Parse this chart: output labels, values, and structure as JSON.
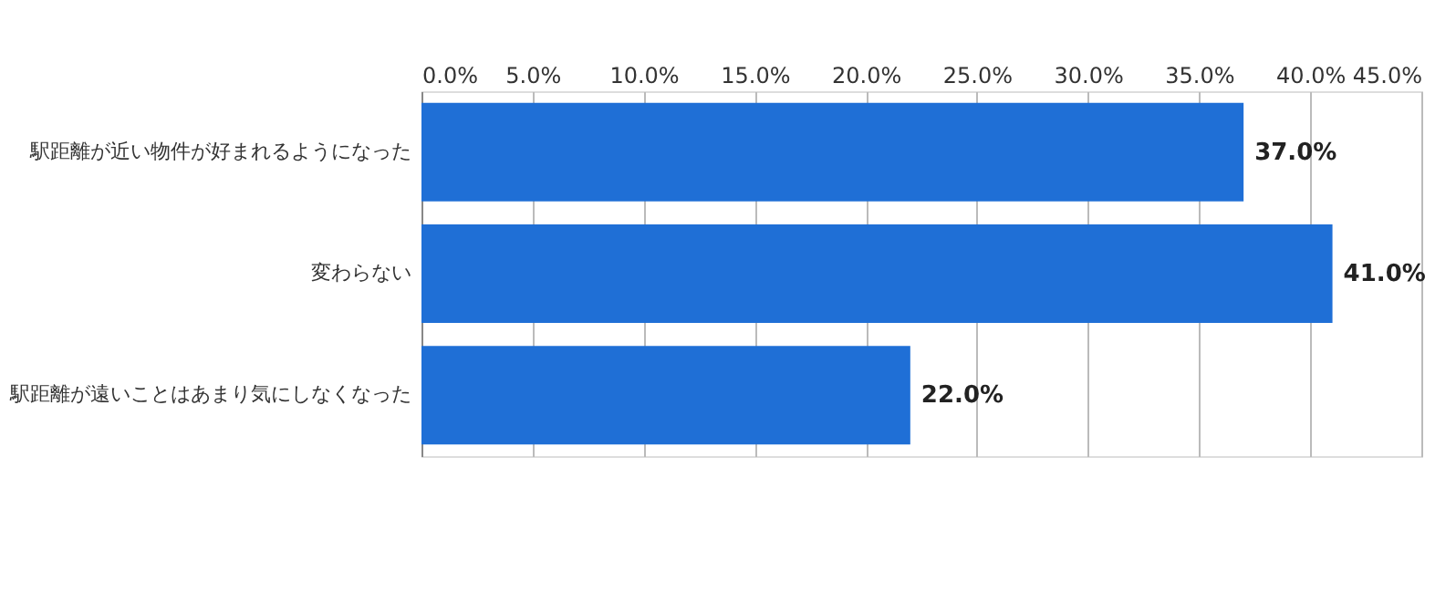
{
  "chart_data": {
    "type": "bar",
    "orientation": "horizontal",
    "categories": [
      "駅距離が近い物件が好まれるようになった",
      "変わらない",
      "駅距離が遠いことはあまり気にしなくなった"
    ],
    "values": [
      37.0,
      41.0,
      22.0
    ],
    "color": "#1f6fd6",
    "value_labels": [
      "37.0%",
      "41.0%",
      "22.0%"
    ],
    "xlim": [
      0,
      45
    ],
    "xticks": [
      {
        "value": 0,
        "label": "0.0%"
      },
      {
        "value": 5,
        "label": "5.0%"
      },
      {
        "value": 10,
        "label": "10.0%"
      },
      {
        "value": 15,
        "label": "15.0%"
      },
      {
        "value": 20,
        "label": "20.0%"
      },
      {
        "value": 25,
        "label": "25.0%"
      },
      {
        "value": 30,
        "label": "30.0%"
      },
      {
        "value": 35,
        "label": "35.0%"
      },
      {
        "value": 40,
        "label": "40.0%"
      },
      {
        "value": 45,
        "label": "45.0%"
      }
    ],
    "grid": "x"
  }
}
